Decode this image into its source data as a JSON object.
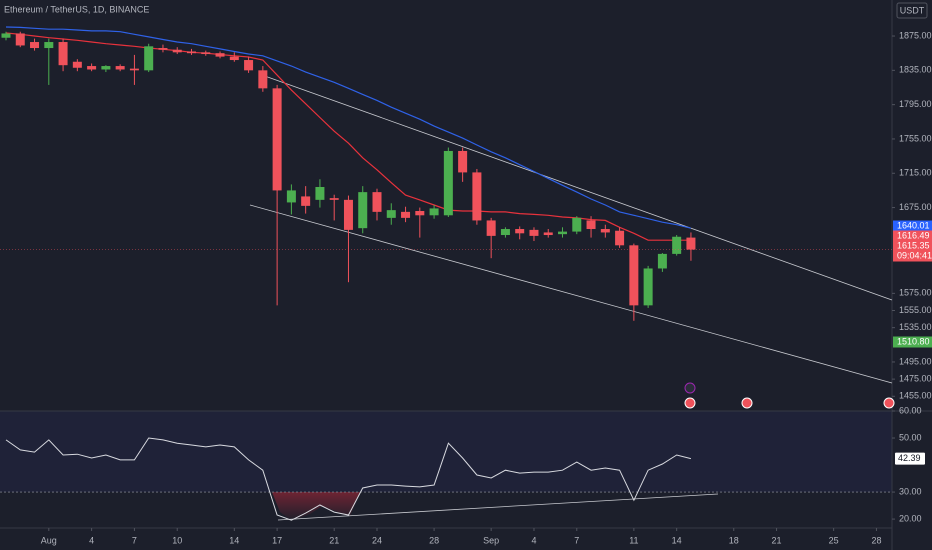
{
  "chart_data": [
    {
      "type": "candlestick",
      "title": "Ethereum / TetherUS, 1D, BINANCE",
      "currency": "USDT",
      "up_color": "#4caf50",
      "down_color": "#f0525b",
      "open": [
        1873,
        1878,
        1868,
        1861,
        1868,
        1845,
        1840,
        1836,
        1840,
        1837,
        1835,
        1861,
        1859,
        1857,
        1856,
        1855,
        1851,
        1847,
        1835,
        1814,
        1681,
        1688,
        1684,
        1686,
        1684,
        1651,
        1693,
        1663,
        1670,
        1671,
        1666,
        1666,
        1741,
        1716,
        1660,
        1643,
        1650,
        1649,
        1646,
        1644,
        1647,
        1660,
        1650,
        1648,
        1631,
        1561,
        1604,
        1621,
        1640
      ],
      "high": [
        1880,
        1880,
        1872,
        1872,
        1872,
        1848,
        1843,
        1841,
        1842,
        1853,
        1866,
        1865,
        1862,
        1860,
        1858,
        1857,
        1856,
        1851,
        1840,
        1818,
        1702,
        1700,
        1708,
        1690,
        1689,
        1700,
        1697,
        1680,
        1676,
        1675,
        1678,
        1745,
        1745,
        1720,
        1663,
        1652,
        1653,
        1652,
        1650,
        1652,
        1665,
        1665,
        1655,
        1652,
        1633,
        1607,
        1622,
        1643,
        1646
      ],
      "low": [
        1870,
        1862,
        1858,
        1818,
        1834,
        1834,
        1834,
        1833,
        1834,
        1818,
        1833,
        1856,
        1854,
        1853,
        1852,
        1849,
        1845,
        1832,
        1810,
        1561,
        1667,
        1668,
        1675,
        1660,
        1588,
        1645,
        1660,
        1655,
        1658,
        1640,
        1662,
        1664,
        1705,
        1655,
        1616,
        1640,
        1638,
        1636,
        1640,
        1640,
        1644,
        1640,
        1640,
        1628,
        1543,
        1558,
        1600,
        1619,
        1613
      ],
      "close": [
        1878,
        1864,
        1861,
        1868,
        1841,
        1838,
        1836,
        1840,
        1836,
        1835,
        1863,
        1859,
        1856,
        1855,
        1854,
        1851,
        1847,
        1835,
        1814,
        1695,
        1695,
        1677,
        1699,
        1684,
        1649,
        1693,
        1670,
        1672,
        1663,
        1666,
        1674,
        1741,
        1716,
        1660,
        1642,
        1650,
        1645,
        1642,
        1643,
        1647,
        1663,
        1650,
        1646,
        1631,
        1561,
        1604,
        1621,
        1641,
        1626
      ],
      "series": [
        {
          "color": "#2f62e8",
          "values": [
            1885.5,
            1885,
            1884,
            1883,
            1883,
            1882,
            1881,
            1881,
            1880,
            1877,
            1874,
            1871,
            1868,
            1866,
            1863,
            1860,
            1857,
            1854,
            1852,
            1846,
            1840,
            1833,
            1827,
            1821,
            1814,
            1807,
            1800,
            1792,
            1785,
            1778,
            1770,
            1763,
            1756,
            1748,
            1740,
            1733,
            1725,
            1717,
            1709,
            1701,
            1693,
            1685,
            1678,
            1670,
            1666,
            1662,
            1658,
            1655,
            1651
          ]
        },
        {
          "color": "#e8323c",
          "values": [
            1878.5,
            1877,
            1875,
            1873,
            1871.5,
            1870,
            1868,
            1866,
            1864.5,
            1863,
            1861,
            1859.5,
            1858,
            1856,
            1855,
            1853.5,
            1852,
            1850.5,
            1847,
            1829.5,
            1812,
            1796,
            1780,
            1764,
            1750,
            1733,
            1719,
            1704,
            1689.5,
            1684,
            1678,
            1672,
            1671,
            1671,
            1670,
            1670,
            1668,
            1667,
            1666,
            1664,
            1663,
            1661,
            1660,
            1652,
            1645,
            1637,
            1637,
            1637,
            1637
          ]
        }
      ],
      "ylim": [
        1439,
        1917
      ],
      "yticks": [
        {
          "value": 1875,
          "label": "1875.00"
        },
        {
          "value": 1835,
          "label": "1835.00"
        },
        {
          "value": 1795,
          "label": "1795.00"
        },
        {
          "value": 1755,
          "label": "1755.00"
        },
        {
          "value": 1715,
          "label": "1715.00"
        },
        {
          "value": 1675,
          "label": "1675.00"
        },
        {
          "value": 1575,
          "label": "1575.00"
        },
        {
          "value": 1555,
          "label": "1555.00"
        },
        {
          "value": 1535,
          "label": "1535.00"
        },
        {
          "value": 1495,
          "label": "1495.00"
        },
        {
          "value": 1475,
          "label": "1475.00"
        },
        {
          "value": 1455,
          "label": "1455.00"
        }
      ],
      "xlim": [
        -0.42,
        62.09
      ],
      "xticks": [
        {
          "value": 3,
          "label": "Aug"
        },
        {
          "value": 6,
          "label": "4"
        },
        {
          "value": 9,
          "label": "7"
        },
        {
          "value": 12,
          "label": "10"
        },
        {
          "value": 16,
          "label": "14"
        },
        {
          "value": 19,
          "label": "17"
        },
        {
          "value": 23,
          "label": "21"
        },
        {
          "value": 26,
          "label": "24"
        },
        {
          "value": 30,
          "label": "28"
        },
        {
          "value": 34,
          "label": "Sep"
        },
        {
          "value": 37,
          "label": "4"
        },
        {
          "value": 40,
          "label": "7"
        },
        {
          "value": 44,
          "label": "11"
        },
        {
          "value": 47,
          "label": "14"
        },
        {
          "value": 51,
          "label": "18"
        },
        {
          "value": 54,
          "label": "21"
        },
        {
          "value": 58,
          "label": "25"
        },
        {
          "value": 61,
          "label": "28"
        }
      ],
      "badges": [
        {
          "label": "1640.01",
          "color": "#2962ff"
        },
        {
          "label": "1616.49",
          "color": "#f0525b"
        },
        {
          "label": "1615.35",
          "color": "#f0525b"
        },
        {
          "label": "09:04:41",
          "color": "#f0525b"
        },
        {
          "label": "1510.80",
          "color": "#4caf50"
        }
      ]
    },
    {
      "type": "line",
      "color": "#d8dae0",
      "values": [
        49.3,
        45.6,
        44.8,
        49.3,
        43.7,
        44,
        42.6,
        43.7,
        41.9,
        41.9,
        50,
        49.3,
        48.1,
        47.4,
        46.7,
        47.4,
        46.7,
        41.9,
        38.1,
        21.5,
        19.6,
        22.2,
        25.2,
        22.6,
        21.5,
        31.5,
        32.6,
        32.6,
        32.2,
        31.9,
        32.6,
        48.1,
        42.6,
        36.3,
        35.2,
        38.1,
        37,
        37.4,
        37.4,
        38.1,
        41.1,
        38.1,
        38.9,
        38.1,
        27,
        38.1,
        40.4,
        43.7,
        42.39
      ],
      "last_label": "42.39",
      "ylim": [
        16.7,
        60
      ],
      "yticks": [
        {
          "value": 60,
          "label": "60.00"
        },
        {
          "value": 50,
          "label": "50.00"
        },
        {
          "value": 30,
          "label": "30.00"
        },
        {
          "value": 20,
          "label": "20.00"
        }
      ]
    }
  ]
}
